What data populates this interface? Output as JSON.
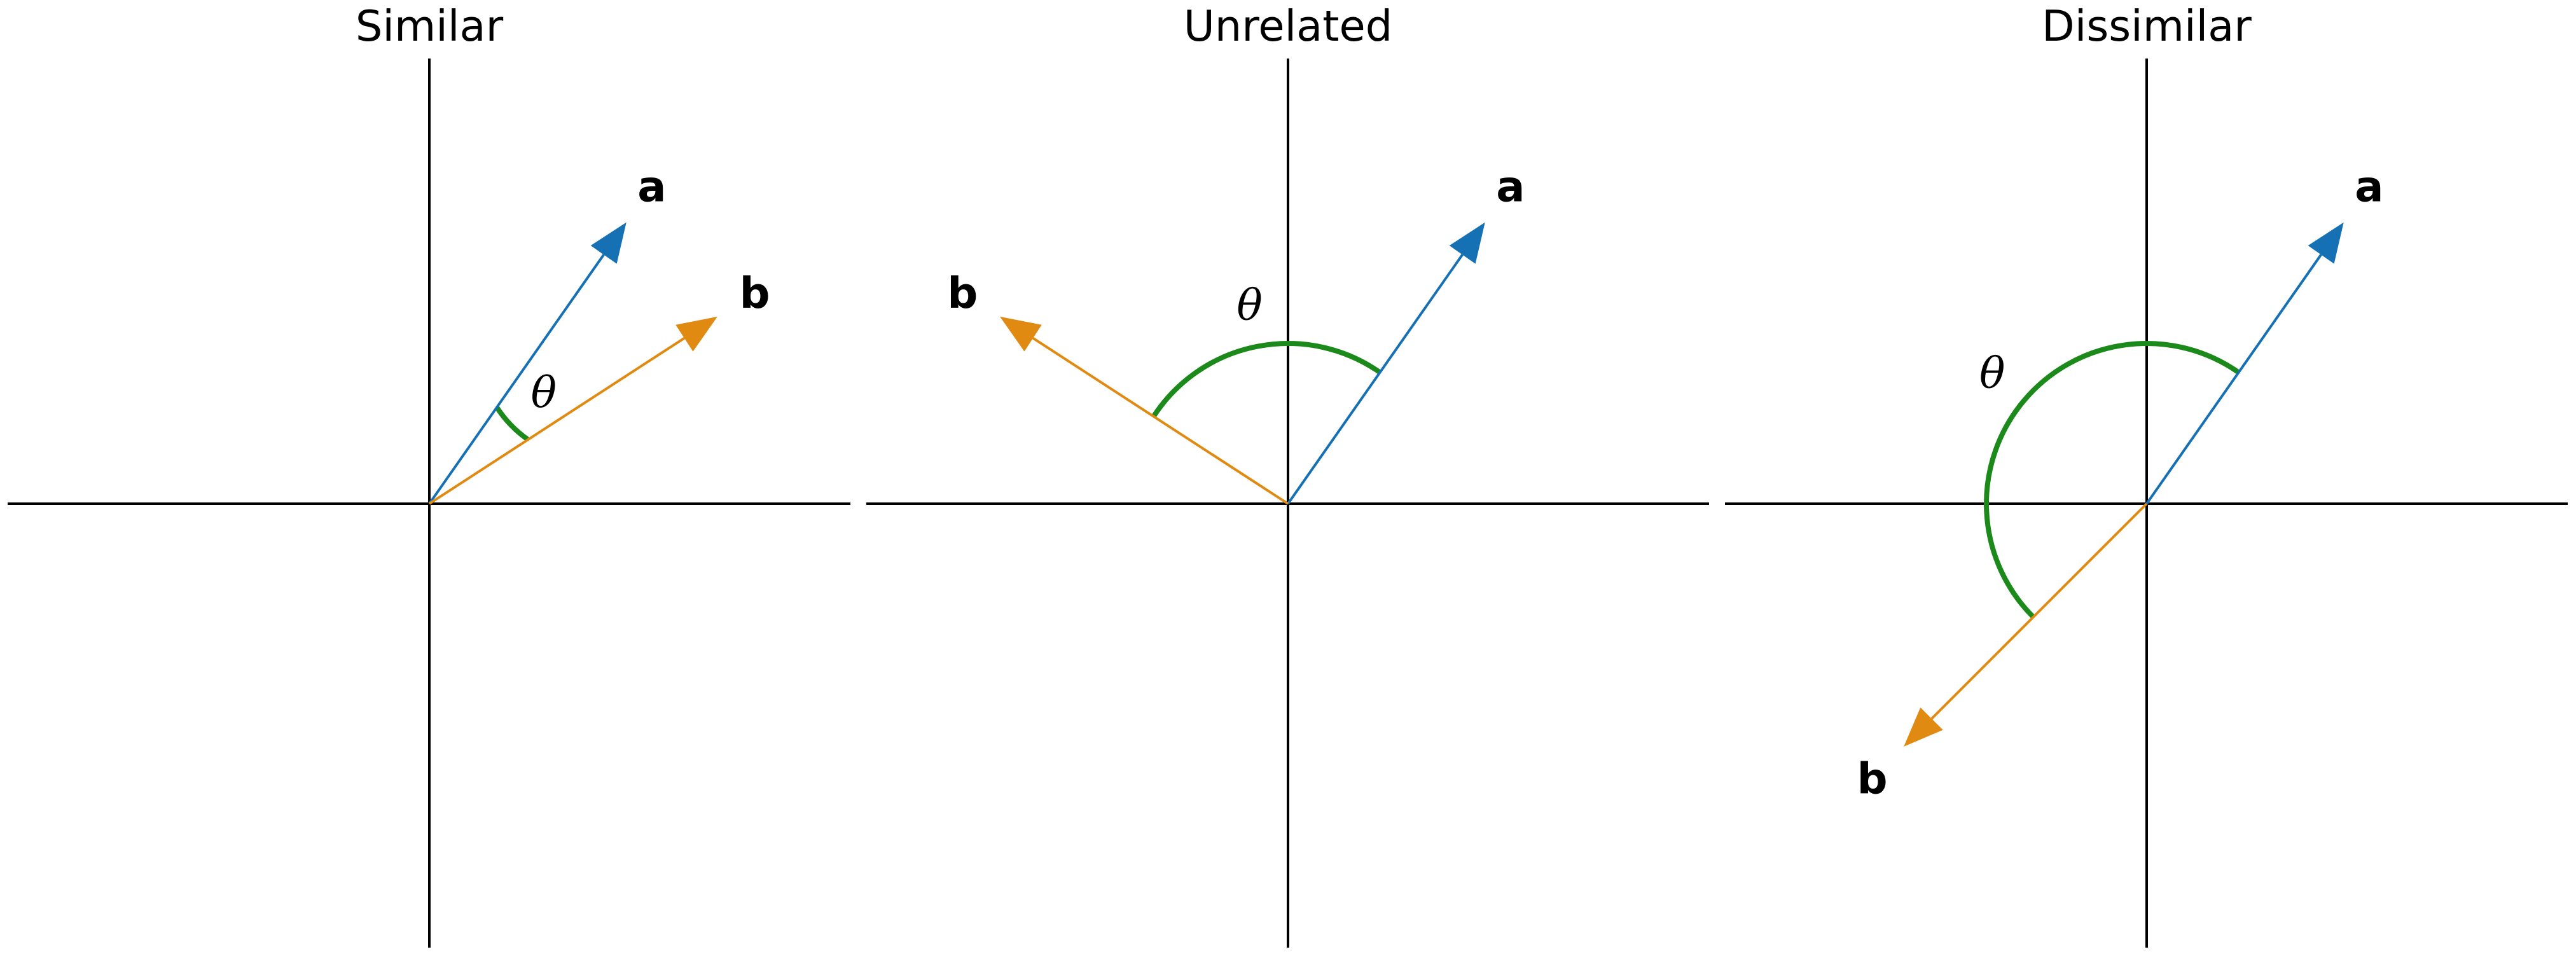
{
  "colors": {
    "a": "#1670b4",
    "b": "#e08a12",
    "theta_arc": "#1b8a1b",
    "axes": "#000000"
  },
  "panels": [
    {
      "title": "Similar",
      "a_label": "a",
      "b_label": "b",
      "theta_label": "θ",
      "angle_a_deg": 55,
      "angle_b_deg": 33
    },
    {
      "title": "Unrelated",
      "a_label": "a",
      "b_label": "b",
      "theta_label": "θ",
      "angle_a_deg": 55,
      "angle_b_deg": 147
    },
    {
      "title": "Dissimilar",
      "a_label": "a",
      "b_label": "b",
      "theta_label": "θ",
      "angle_a_deg": 55,
      "angle_b_deg": 225
    }
  ]
}
